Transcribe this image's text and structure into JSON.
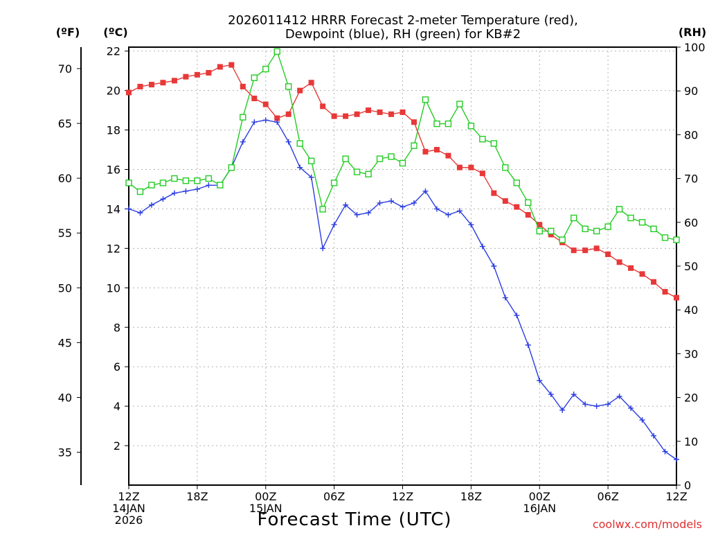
{
  "chart_data": {
    "type": "line",
    "title_line1": "2026011412 HRRR Forecast 2-meter Temperature (red),",
    "title_line2": "Dewpoint (blue), RH (green) for KB#2",
    "xlabel": "Forecast Time (UTC)",
    "credit": "coolwx.com/models",
    "units": {
      "f": "(ºF)",
      "c": "(ºC)",
      "rh": "(RH)"
    },
    "hours": [
      0,
      1,
      2,
      3,
      4,
      5,
      6,
      7,
      8,
      9,
      10,
      11,
      12,
      13,
      14,
      15,
      16,
      17,
      18,
      19,
      20,
      21,
      22,
      23,
      24,
      25,
      26,
      27,
      28,
      29,
      30,
      31,
      32,
      33,
      34,
      35,
      36,
      37,
      38,
      39,
      40,
      41,
      42,
      43,
      44,
      45,
      46,
      47,
      48
    ],
    "x_ticks": [
      {
        "hour": 0,
        "lines": [
          "12Z",
          "14JAN",
          "2026"
        ]
      },
      {
        "hour": 6,
        "lines": [
          "18Z"
        ]
      },
      {
        "hour": 12,
        "lines": [
          "00Z",
          "15JAN"
        ]
      },
      {
        "hour": 18,
        "lines": [
          "06Z"
        ]
      },
      {
        "hour": 24,
        "lines": [
          "12Z"
        ]
      },
      {
        "hour": 30,
        "lines": [
          "18Z"
        ]
      },
      {
        "hour": 36,
        "lines": [
          "00Z",
          "16JAN"
        ]
      },
      {
        "hour": 42,
        "lines": [
          "06Z"
        ]
      },
      {
        "hour": 48,
        "lines": [
          "12Z"
        ]
      }
    ],
    "y_celsius": {
      "lim": [
        0,
        22.2
      ],
      "ticks": [
        2,
        4,
        6,
        8,
        10,
        12,
        14,
        16,
        18,
        20,
        22
      ]
    },
    "y_fahrenheit": {
      "ticks": [
        35,
        40,
        45,
        50,
        55,
        60,
        65,
        70
      ]
    },
    "y_rh": {
      "lim": [
        0,
        100
      ],
      "ticks": [
        0,
        10,
        20,
        30,
        40,
        50,
        60,
        70,
        80,
        90,
        100
      ]
    },
    "grid": true,
    "series": [
      {
        "name": "Temperature",
        "color": "#e83838",
        "marker": "filled-square",
        "values": [
          19.9,
          20.2,
          20.3,
          20.4,
          20.5,
          20.7,
          20.8,
          20.9,
          21.2,
          21.3,
          20.2,
          19.6,
          19.3,
          18.6,
          18.8,
          20.0,
          20.4,
          19.2,
          18.7,
          18.7,
          18.8,
          19.0,
          18.9,
          18.8,
          18.9,
          18.4,
          16.9,
          17.0,
          16.7,
          16.1,
          16.1,
          15.8,
          14.8,
          14.4,
          14.1,
          13.7,
          13.2,
          12.7,
          12.3,
          11.9,
          11.9,
          12.0,
          11.7,
          11.3,
          11.0,
          10.7,
          10.3,
          9.8,
          9.5
        ]
      },
      {
        "name": "Dewpoint",
        "color": "#2a3ce0",
        "marker": "plus",
        "values": [
          14.0,
          13.8,
          14.2,
          14.5,
          14.8,
          14.9,
          15.0,
          15.2,
          15.2,
          16.1,
          17.4,
          18.4,
          18.5,
          18.4,
          17.4,
          16.1,
          15.6,
          12.0,
          13.2,
          14.2,
          13.7,
          13.8,
          14.3,
          14.4,
          14.1,
          14.3,
          14.9,
          14.0,
          13.7,
          13.9,
          13.2,
          12.1,
          11.1,
          9.5,
          8.6,
          7.1,
          5.3,
          4.6,
          3.8,
          4.6,
          4.1,
          4.0,
          4.1,
          4.5,
          3.9,
          3.3,
          2.5,
          1.7,
          1.3
        ]
      },
      {
        "name": "RH",
        "color": "#22cc22",
        "marker": "open-square",
        "values": [
          69,
          67,
          68.5,
          69,
          70,
          69.5,
          69.5,
          70,
          68.5,
          72.5,
          84,
          93,
          95,
          99,
          91,
          78,
          74,
          63,
          69,
          74.5,
          71.5,
          71,
          74.5,
          75,
          73.5,
          77.5,
          88,
          82.5,
          82.5,
          87,
          82,
          79,
          78,
          72.5,
          69,
          64.5,
          58,
          58,
          56,
          61,
          58.5,
          58,
          59,
          63,
          61,
          60,
          58.5,
          56.5,
          56
        ]
      }
    ]
  }
}
